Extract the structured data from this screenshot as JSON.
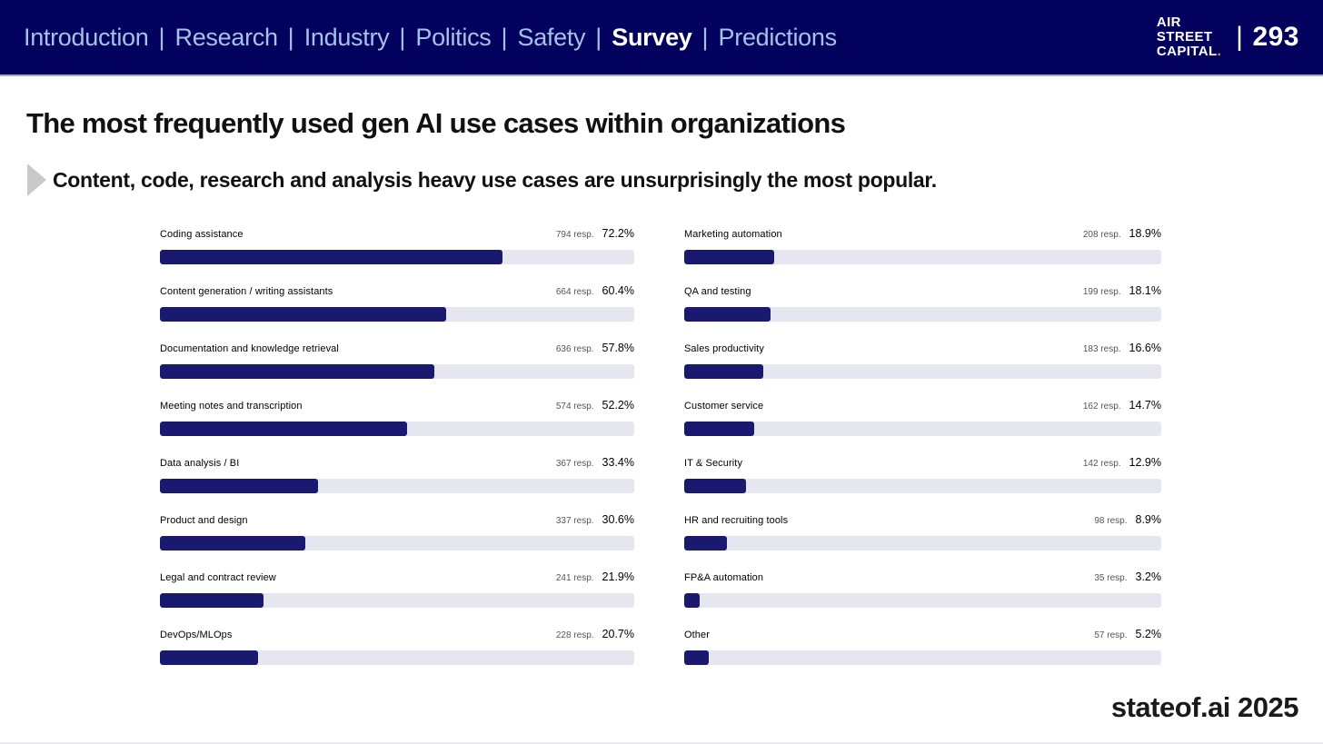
{
  "header": {
    "nav": {
      "separator": "|",
      "items": [
        {
          "label": "Introduction",
          "active": false
        },
        {
          "label": "Research",
          "active": false
        },
        {
          "label": "Industry",
          "active": false
        },
        {
          "label": "Politics",
          "active": false
        },
        {
          "label": "Safety",
          "active": false
        },
        {
          "label": "Survey",
          "active": true
        },
        {
          "label": "Predictions",
          "active": false
        }
      ]
    },
    "logo": {
      "line1": "AIR",
      "line2": "STREET",
      "line3": "CAPITAL",
      "dot": "."
    },
    "page_number": {
      "separator": "|",
      "number": "293"
    }
  },
  "title": "The most frequently used gen AI use cases within organizations",
  "subtitle": "Content, code, research and analysis heavy use cases are unsurprisingly the most popular.",
  "footer": "stateof.ai 2025",
  "colors": {
    "header_bg": "#02025e",
    "nav_text": "#a4c2e8",
    "nav_active": "#ffffff",
    "bar_fill": "#191970",
    "bar_track": "#e5e6f0",
    "logo_dot": "#f0a90a",
    "resp_text": "#555555",
    "title_text": "#111111",
    "arrow": "#c9c9c9"
  },
  "chart_data": {
    "type": "bar",
    "orientation": "horizontal",
    "value_unit": "percent of respondents",
    "xlim": [
      0,
      100
    ],
    "grid": false,
    "legend": false,
    "columns": [
      {
        "name": "left",
        "rows": [
          {
            "label": "Coding assistance",
            "responses": 794,
            "responses_label": "794 resp.",
            "percent": 72.2,
            "percent_label": "72.2%"
          },
          {
            "label": "Content generation / writing assistants",
            "responses": 664,
            "responses_label": "664 resp.",
            "percent": 60.4,
            "percent_label": "60.4%"
          },
          {
            "label": "Documentation and knowledge retrieval",
            "responses": 636,
            "responses_label": "636 resp.",
            "percent": 57.8,
            "percent_label": "57.8%"
          },
          {
            "label": "Meeting notes and transcription",
            "responses": 574,
            "responses_label": "574 resp.",
            "percent": 52.2,
            "percent_label": "52.2%"
          },
          {
            "label": "Data analysis / BI",
            "responses": 367,
            "responses_label": "367 resp.",
            "percent": 33.4,
            "percent_label": "33.4%"
          },
          {
            "label": "Product and design",
            "responses": 337,
            "responses_label": "337 resp.",
            "percent": 30.6,
            "percent_label": "30.6%"
          },
          {
            "label": "Legal and contract review",
            "responses": 241,
            "responses_label": "241 resp.",
            "percent": 21.9,
            "percent_label": "21.9%"
          },
          {
            "label": "DevOps/MLOps",
            "responses": 228,
            "responses_label": "228 resp.",
            "percent": 20.7,
            "percent_label": "20.7%"
          }
        ]
      },
      {
        "name": "right",
        "rows": [
          {
            "label": "Marketing automation",
            "responses": 208,
            "responses_label": "208 resp.",
            "percent": 18.9,
            "percent_label": "18.9%"
          },
          {
            "label": "QA and testing",
            "responses": 199,
            "responses_label": "199 resp.",
            "percent": 18.1,
            "percent_label": "18.1%"
          },
          {
            "label": "Sales productivity",
            "responses": 183,
            "responses_label": "183 resp.",
            "percent": 16.6,
            "percent_label": "16.6%"
          },
          {
            "label": "Customer service",
            "responses": 162,
            "responses_label": "162 resp.",
            "percent": 14.7,
            "percent_label": "14.7%"
          },
          {
            "label": "IT & Security",
            "responses": 142,
            "responses_label": "142 resp.",
            "percent": 12.9,
            "percent_label": "12.9%"
          },
          {
            "label": "HR and recruiting tools",
            "responses": 98,
            "responses_label": "98 resp.",
            "percent": 8.9,
            "percent_label": "8.9%"
          },
          {
            "label": "FP&A automation",
            "responses": 35,
            "responses_label": "35 resp.",
            "percent": 3.2,
            "percent_label": "3.2%"
          },
          {
            "label": "Other",
            "responses": 57,
            "responses_label": "57 resp.",
            "percent": 5.2,
            "percent_label": "5.2%"
          }
        ]
      }
    ]
  }
}
